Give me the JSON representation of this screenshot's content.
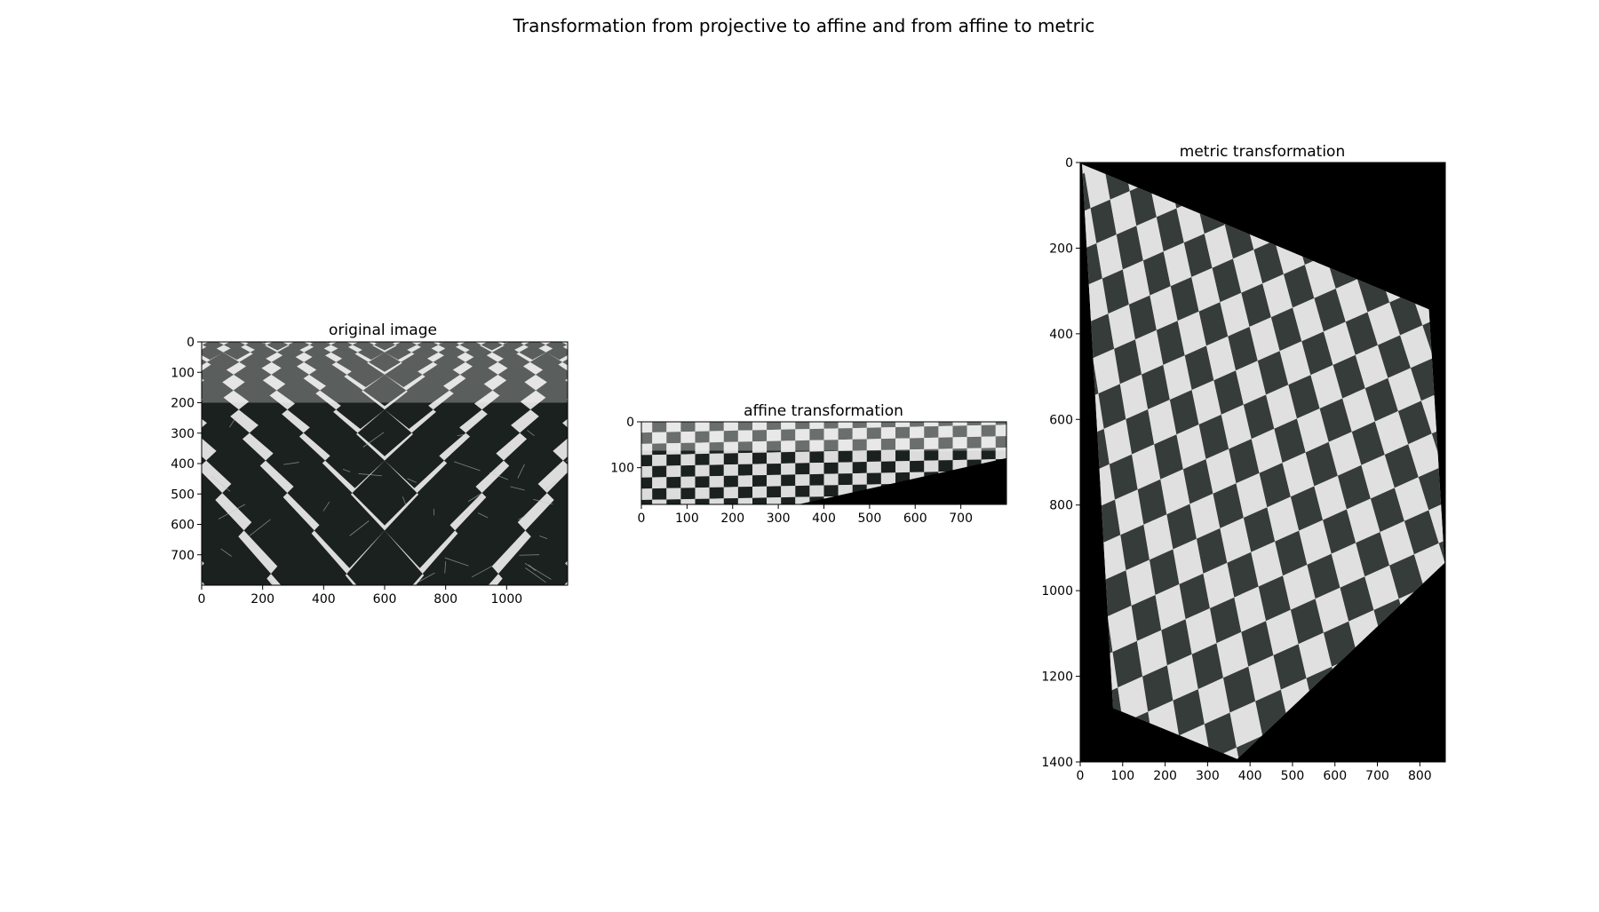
{
  "figure": {
    "suptitle": "Transformation from projective to affine and from affine to metric"
  },
  "chart_data": [
    {
      "type": "image",
      "title": "original image",
      "xlim": [
        0,
        1200
      ],
      "ylim": [
        800,
        0
      ],
      "xticks": [
        0,
        200,
        400,
        600,
        800,
        1000
      ],
      "yticks": [
        0,
        100,
        200,
        300,
        400,
        500,
        600,
        700
      ],
      "content": "perspective view of black and white marble checkerboard floor"
    },
    {
      "type": "image",
      "title": "affine transformation",
      "xlim": [
        0,
        800
      ],
      "ylim": [
        180,
        0
      ],
      "xticks": [
        0,
        100,
        200,
        300,
        400,
        500,
        600,
        700
      ],
      "yticks": [
        0,
        100
      ],
      "content": "affine-rectified checkerboard strip with black triangular region at lower right"
    },
    {
      "type": "image",
      "title": "metric transformation",
      "xlim": [
        0,
        860
      ],
      "ylim": [
        1400,
        0
      ],
      "xticks": [
        0,
        100,
        200,
        300,
        400,
        500,
        600,
        700,
        800
      ],
      "yticks": [
        0,
        200,
        400,
        600,
        800,
        1000,
        1200,
        1400
      ],
      "content": "metric-rectified checkerboard quadrilateral on black background"
    }
  ],
  "colors": {
    "dark_tile": "#1b211e",
    "light_tile": "#dcdcdc",
    "vein": "#bfc8c2",
    "background": "#000000"
  }
}
